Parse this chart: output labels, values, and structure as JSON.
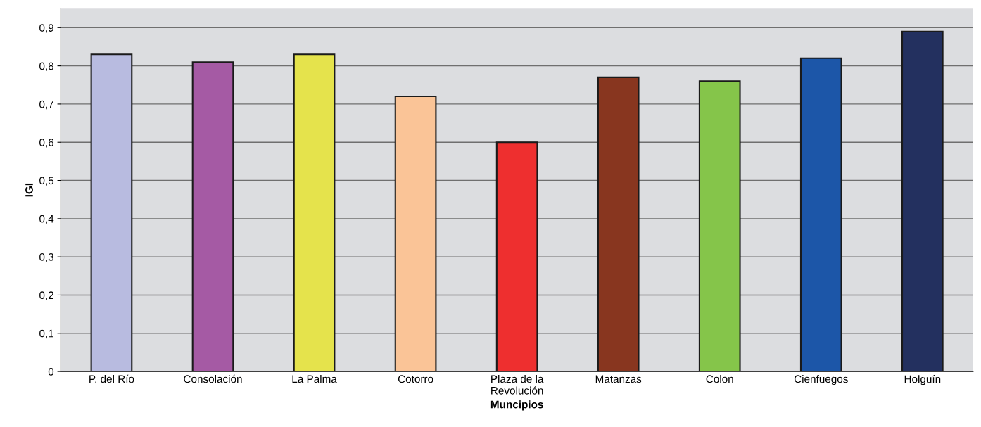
{
  "chart_data": {
    "type": "bar",
    "xlabel": "Muncipios",
    "ylabel": "IGI",
    "categories": [
      "P. del Río",
      "Consolación",
      "La Palma",
      "Cotorro",
      "Plaza de la\nRevolución",
      "Matanzas",
      "Colon",
      "Cienfuegos",
      "Holguín"
    ],
    "values": [
      0.83,
      0.81,
      0.83,
      0.72,
      0.6,
      0.77,
      0.76,
      0.82,
      0.89
    ],
    "colors": [
      "#b8bbe0",
      "#a55aa4",
      "#e5e34c",
      "#fac497",
      "#ee2f2f",
      "#88361f",
      "#85c54a",
      "#1c56a8",
      "#23305f"
    ],
    "ylim": [
      0,
      0.95
    ],
    "yticks": [
      {
        "value": 0,
        "label": "0"
      },
      {
        "value": 0.1,
        "label": "0,1"
      },
      {
        "value": 0.2,
        "label": "0,2"
      },
      {
        "value": 0.3,
        "label": "0,3"
      },
      {
        "value": 0.4,
        "label": "0,4"
      },
      {
        "value": 0.5,
        "label": "0,5"
      },
      {
        "value": 0.6,
        "label": "0,6"
      },
      {
        "value": 0.7,
        "label": "0,7"
      },
      {
        "value": 0.8,
        "label": "0,8"
      },
      {
        "value": 0.9,
        "label": "0,9"
      }
    ],
    "grid": "y"
  }
}
